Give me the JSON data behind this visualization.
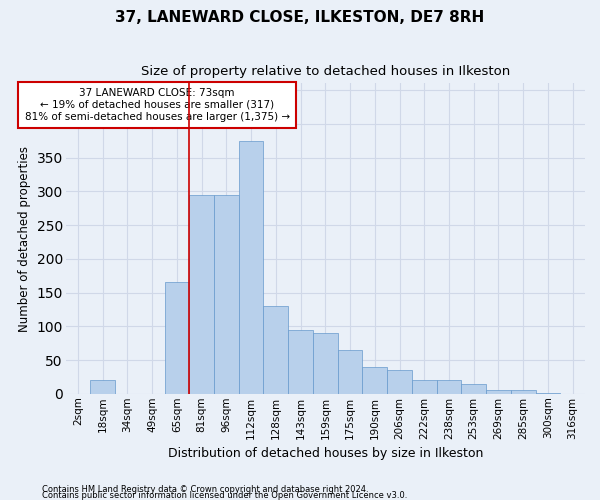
{
  "title": "37, LANEWARD CLOSE, ILKESTON, DE7 8RH",
  "subtitle": "Size of property relative to detached houses in Ilkeston",
  "xlabel": "Distribution of detached houses by size in Ilkeston",
  "ylabel": "Number of detached properties",
  "categories": [
    "2sqm",
    "18sqm",
    "34sqm",
    "49sqm",
    "65sqm",
    "81sqm",
    "96sqm",
    "112sqm",
    "128sqm",
    "143sqm",
    "159sqm",
    "175sqm",
    "190sqm",
    "206sqm",
    "222sqm",
    "238sqm",
    "253sqm",
    "269sqm",
    "285sqm",
    "300sqm",
    "316sqm"
  ],
  "values": [
    0,
    20,
    0,
    0,
    165,
    295,
    295,
    375,
    130,
    95,
    90,
    65,
    40,
    35,
    20,
    20,
    15,
    5,
    5,
    1,
    0
  ],
  "bar_color": "#b8d0eb",
  "bar_edge_color": "#6699cc",
  "vline_x_index": 5,
  "vline_color": "#cc0000",
  "ylim": [
    0,
    460
  ],
  "yticks": [
    0,
    50,
    100,
    150,
    200,
    250,
    300,
    350,
    400,
    450
  ],
  "annotation_text": "37 LANEWARD CLOSE: 73sqm\n← 19% of detached houses are smaller (317)\n81% of semi-detached houses are larger (1,375) →",
  "annotation_box_color": "#ffffff",
  "annotation_box_edge": "#cc0000",
  "footer_line1": "Contains HM Land Registry data © Crown copyright and database right 2024.",
  "footer_line2": "Contains public sector information licensed under the Open Government Licence v3.0.",
  "bg_color": "#eaf0f8",
  "grid_color": "#d0d8e8",
  "title_fontsize": 11,
  "subtitle_fontsize": 9.5,
  "tick_fontsize": 7.5,
  "ylabel_fontsize": 8.5,
  "xlabel_fontsize": 9
}
